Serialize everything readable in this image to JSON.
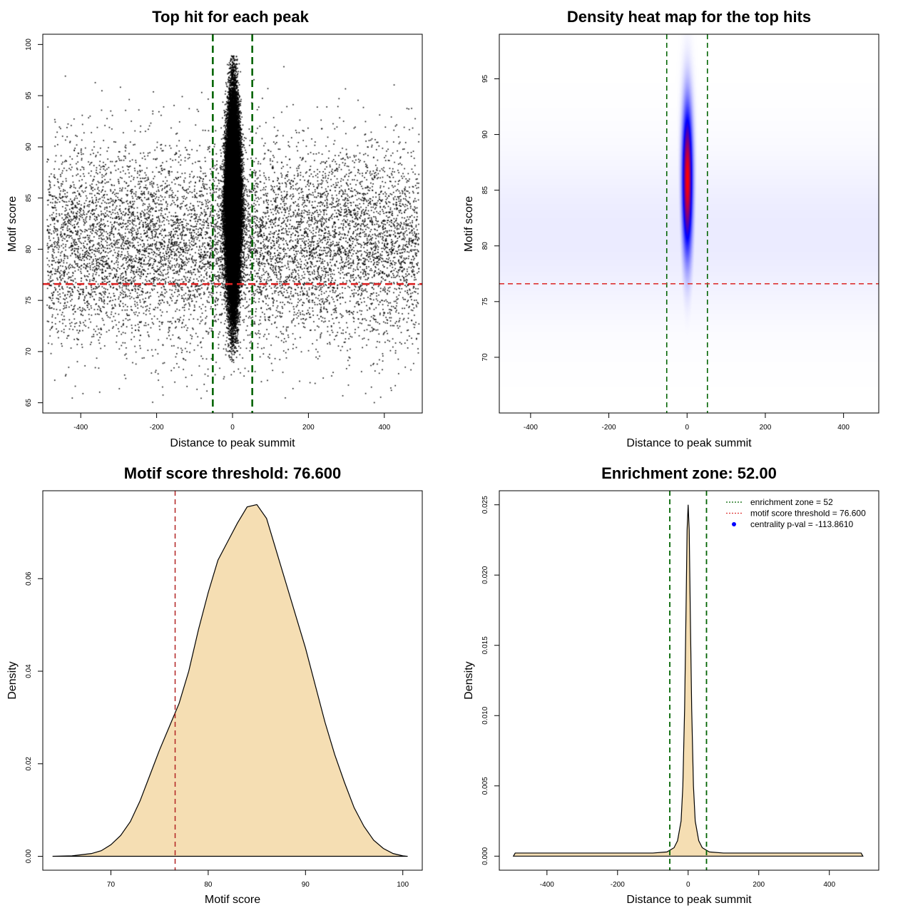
{
  "chart_data": [
    {
      "id": "scatter",
      "type": "scatter",
      "title": "Top hit for each peak",
      "xlabel": "Distance to peak summit",
      "ylabel": "Motif score",
      "xlim": [
        -500,
        500
      ],
      "ylim": [
        64,
        101
      ],
      "xticks": [
        -400,
        -200,
        0,
        200,
        400
      ],
      "yticks": [
        65,
        70,
        75,
        80,
        85,
        90,
        95,
        100
      ],
      "point_color": "#000000",
      "background_points": 9000,
      "central_points": 42000,
      "background_score_mean": 80.5,
      "background_score_sd": 4.8,
      "central_score_mean": 84.5,
      "central_score_sd": 4.8,
      "central_distance_sd": 10,
      "vlines": [
        {
          "x": -52,
          "color": "#006400"
        },
        {
          "x": 52,
          "color": "#006400"
        }
      ],
      "hlines": [
        {
          "y": 76.6,
          "color": "#DD2222"
        }
      ]
    },
    {
      "id": "heatmap",
      "type": "heatmap",
      "title": "Density heat map for the top hits",
      "xlabel": "Distance to peak summit",
      "ylabel": "Motif score",
      "xlim": [
        -480,
        490
      ],
      "ylim": [
        65,
        99
      ],
      "xticks": [
        -400,
        -200,
        0,
        200,
        400
      ],
      "yticks": [
        70,
        75,
        80,
        85,
        90,
        95
      ],
      "colors": [
        "#FFFFFF",
        "#0000FF",
        "#FF0000"
      ],
      "peak_center": [
        0,
        86
      ],
      "peak_spread": [
        9,
        4.5
      ],
      "vlines": [
        {
          "x": -52,
          "color": "#006400"
        },
        {
          "x": 52,
          "color": "#006400"
        }
      ],
      "hlines": [
        {
          "y": 76.6,
          "color": "#DD3333"
        }
      ]
    },
    {
      "id": "score_density",
      "type": "area",
      "title": "Motif score threshold: 76.600",
      "xlabel": "Motif score",
      "ylabel": "Density",
      "xlim": [
        63,
        102
      ],
      "ylim": [
        -0.003,
        0.079
      ],
      "xticks": [
        70,
        80,
        90,
        100
      ],
      "yticks": [
        0.0,
        0.02,
        0.04,
        0.06
      ],
      "ytick_labels": [
        "0.00",
        "0.02",
        "0.04",
        "0.06"
      ],
      "fill_color": "#F5DEB3",
      "x": [
        64,
        66,
        68,
        69,
        70,
        71,
        72,
        73,
        74,
        75,
        76,
        77,
        78,
        79,
        80,
        81,
        82,
        83,
        84,
        85,
        86,
        87,
        88,
        89,
        90,
        91,
        92,
        93,
        94,
        95,
        96,
        97,
        98,
        99,
        100,
        100.5
      ],
      "values": [
        0.0,
        0.0001,
        0.0006,
        0.0012,
        0.0025,
        0.0045,
        0.0075,
        0.012,
        0.0175,
        0.023,
        0.028,
        0.033,
        0.04,
        0.049,
        0.057,
        0.064,
        0.068,
        0.072,
        0.0755,
        0.076,
        0.073,
        0.066,
        0.059,
        0.052,
        0.045,
        0.037,
        0.029,
        0.022,
        0.016,
        0.0105,
        0.0065,
        0.0035,
        0.0017,
        0.0006,
        0.0001,
        0.0
      ],
      "vlines": [
        {
          "x": 76.6,
          "color": "#B22222"
        }
      ]
    },
    {
      "id": "distance_density",
      "type": "area",
      "title": "Enrichment zone: 52.00",
      "xlabel": "Distance to peak summit",
      "ylabel": "Density",
      "xlim": [
        -535,
        540
      ],
      "ylim": [
        -0.001,
        0.026
      ],
      "xticks": [
        -400,
        -200,
        0,
        200,
        400
      ],
      "yticks": [
        0.0,
        0.005,
        0.01,
        0.015,
        0.02,
        0.025
      ],
      "ytick_labels": [
        "0.000",
        "0.005",
        "0.010",
        "0.015",
        "0.020",
        "0.025"
      ],
      "fill_color": "#F5DEB3",
      "x": [
        -495,
        -490,
        -300,
        -100,
        -60,
        -40,
        -30,
        -20,
        -15,
        -10,
        -6,
        -3,
        0,
        3,
        6,
        10,
        15,
        20,
        30,
        40,
        60,
        100,
        300,
        490,
        495
      ],
      "values": [
        0.0,
        0.00022,
        0.00022,
        0.00022,
        0.0003,
        0.0006,
        0.0011,
        0.0025,
        0.005,
        0.0105,
        0.0175,
        0.0232,
        0.025,
        0.0232,
        0.0175,
        0.0105,
        0.005,
        0.0025,
        0.0011,
        0.0006,
        0.0003,
        0.00022,
        0.00022,
        0.00022,
        0.0
      ],
      "vlines": [
        {
          "x": -52,
          "color": "#006400"
        },
        {
          "x": 52,
          "color": "#006400"
        }
      ],
      "legend": [
        {
          "label": "enrichment zone = 52",
          "color": "#006400",
          "kind": "line"
        },
        {
          "label": "motif score threshold = 76.600",
          "color": "#DD3333",
          "kind": "line"
        },
        {
          "label": "centrality p-val = -113.8610",
          "color": "#0000FF",
          "kind": "point"
        }
      ]
    }
  ]
}
